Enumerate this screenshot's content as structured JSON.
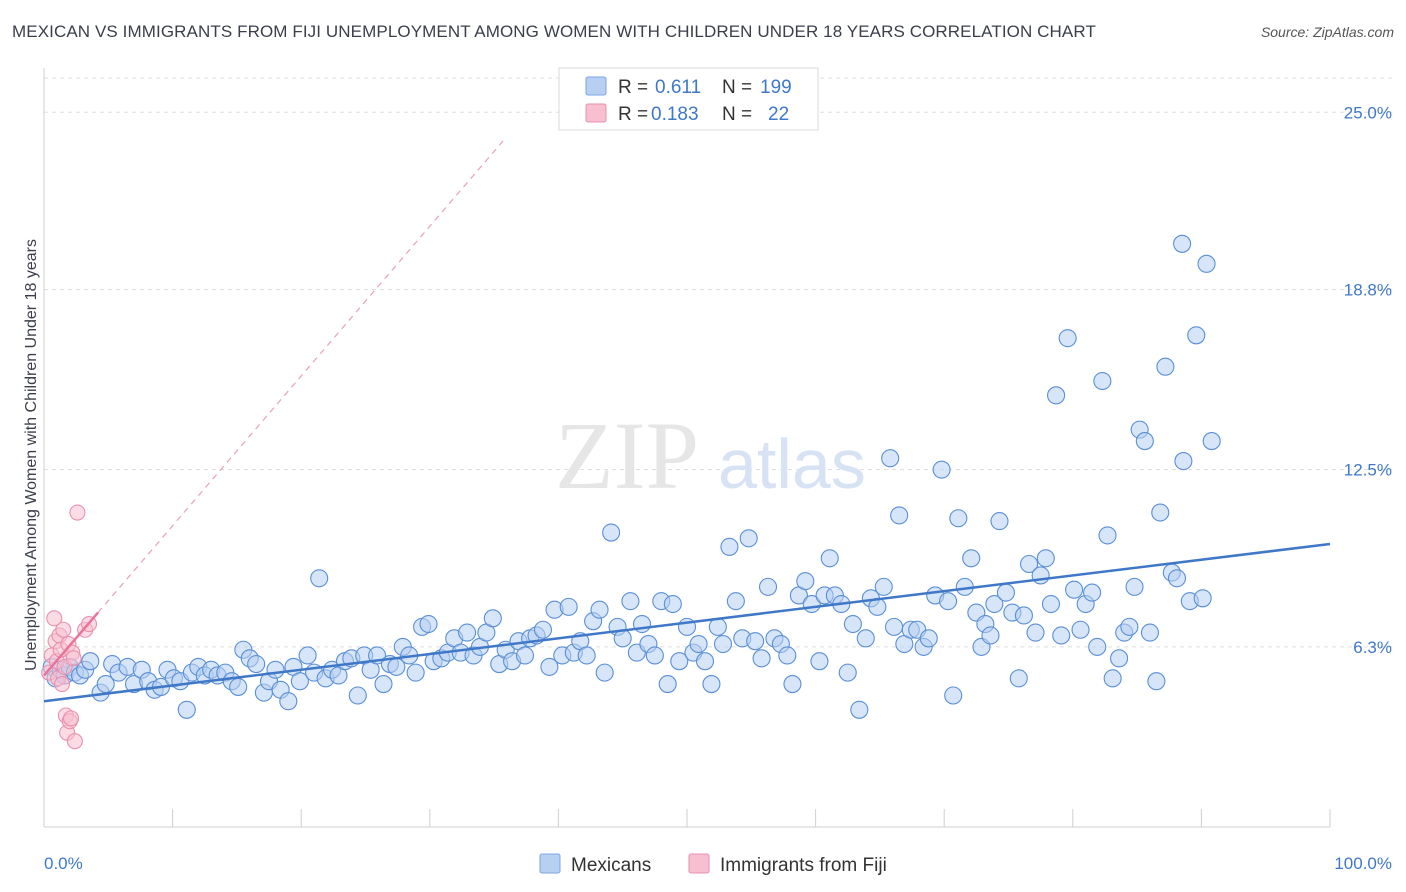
{
  "title": "MEXICAN VS IMMIGRANTS FROM FIJI UNEMPLOYMENT AMONG WOMEN WITH CHILDREN UNDER 18 YEARS CORRELATION CHART",
  "source": "Source: ZipAtlas.com",
  "watermark": {
    "zip": "ZIP",
    "atlas": "atlas"
  },
  "colors": {
    "blue": "#3f78c8",
    "blue_fill": "#b7d0f2",
    "pink": "#e8739b",
    "pink_fill": "#f7bfd0",
    "grid": "#dddddd"
  },
  "legend": {
    "rows": [
      {
        "r_label": "R =",
        "r_value": "0.611",
        "n_label": "N =",
        "n_value": "199"
      },
      {
        "r_label": "R =",
        "r_value": "0.183",
        "n_label": "N =",
        "n_value": "22"
      }
    ]
  },
  "bottom_legend": [
    "Mexicans",
    "Immigrants from Fiji"
  ],
  "chart_data": {
    "type": "scatter",
    "ylabel": "Unemployment Among Women with Children Under 18 years",
    "x_tick_labels": [
      "0.0%",
      "100.0%"
    ],
    "y_tick_labels": [
      "6.3%",
      "12.5%",
      "18.8%",
      "25.0%"
    ],
    "y_ticks": [
      6.3,
      12.5,
      18.8,
      25.0
    ],
    "xlim": [
      0,
      100
    ],
    "ylim": [
      0,
      26.2
    ],
    "grid": true,
    "legend_position": "top-center",
    "series": [
      {
        "name": "Mexicans",
        "color": "#3f78c8",
        "trend": {
          "x": [
            0,
            100
          ],
          "y": [
            4.4,
            9.9
          ]
        },
        "points": [
          [
            0.6,
            5.6
          ],
          [
            0.9,
            5.2
          ],
          [
            1.3,
            5.5
          ],
          [
            1.6,
            5.3
          ],
          [
            2.0,
            5.6
          ],
          [
            2.4,
            5.4
          ],
          [
            2.8,
            5.3
          ],
          [
            3.2,
            5.5
          ],
          [
            3.6,
            5.8
          ],
          [
            4.4,
            4.7
          ],
          [
            4.8,
            5.0
          ],
          [
            5.3,
            5.7
          ],
          [
            5.8,
            5.4
          ],
          [
            6.5,
            5.6
          ],
          [
            7.0,
            5.0
          ],
          [
            7.6,
            5.5
          ],
          [
            8.1,
            5.1
          ],
          [
            8.6,
            4.8
          ],
          [
            9.1,
            4.9
          ],
          [
            9.6,
            5.5
          ],
          [
            10.1,
            5.2
          ],
          [
            10.6,
            5.1
          ],
          [
            11.1,
            4.1
          ],
          [
            11.5,
            5.4
          ],
          [
            12.0,
            5.6
          ],
          [
            12.5,
            5.3
          ],
          [
            13.0,
            5.5
          ],
          [
            13.5,
            5.3
          ],
          [
            14.1,
            5.4
          ],
          [
            14.6,
            5.1
          ],
          [
            15.1,
            4.9
          ],
          [
            15.5,
            6.2
          ],
          [
            16.0,
            5.9
          ],
          [
            16.5,
            5.7
          ],
          [
            17.1,
            4.7
          ],
          [
            17.5,
            5.1
          ],
          [
            18.0,
            5.5
          ],
          [
            18.4,
            4.8
          ],
          [
            19.0,
            4.4
          ],
          [
            19.4,
            5.6
          ],
          [
            19.9,
            5.1
          ],
          [
            20.5,
            6.0
          ],
          [
            21.0,
            5.4
          ],
          [
            21.4,
            8.7
          ],
          [
            21.9,
            5.2
          ],
          [
            22.4,
            5.5
          ],
          [
            22.9,
            5.3
          ],
          [
            23.4,
            5.8
          ],
          [
            23.9,
            5.9
          ],
          [
            24.4,
            4.6
          ],
          [
            24.9,
            6.0
          ],
          [
            25.4,
            5.5
          ],
          [
            25.9,
            6.0
          ],
          [
            26.4,
            5.0
          ],
          [
            26.9,
            5.7
          ],
          [
            27.4,
            5.6
          ],
          [
            27.9,
            6.3
          ],
          [
            28.4,
            6.0
          ],
          [
            28.9,
            5.4
          ],
          [
            29.4,
            7.0
          ],
          [
            29.9,
            7.1
          ],
          [
            30.3,
            5.8
          ],
          [
            30.9,
            5.9
          ],
          [
            31.4,
            6.1
          ],
          [
            31.9,
            6.6
          ],
          [
            32.4,
            6.1
          ],
          [
            32.9,
            6.8
          ],
          [
            33.4,
            6.0
          ],
          [
            33.9,
            6.3
          ],
          [
            34.4,
            6.8
          ],
          [
            34.9,
            7.3
          ],
          [
            35.4,
            5.7
          ],
          [
            35.9,
            6.2
          ],
          [
            36.4,
            5.8
          ],
          [
            36.9,
            6.5
          ],
          [
            37.4,
            6.0
          ],
          [
            37.8,
            6.6
          ],
          [
            38.3,
            6.7
          ],
          [
            38.8,
            6.9
          ],
          [
            39.3,
            5.6
          ],
          [
            39.7,
            7.6
          ],
          [
            40.3,
            6.0
          ],
          [
            40.8,
            7.7
          ],
          [
            41.2,
            6.1
          ],
          [
            41.7,
            6.5
          ],
          [
            42.2,
            6.0
          ],
          [
            42.7,
            7.2
          ],
          [
            43.2,
            7.6
          ],
          [
            43.6,
            5.4
          ],
          [
            44.1,
            10.3
          ],
          [
            44.6,
            7.0
          ],
          [
            45.0,
            6.6
          ],
          [
            45.6,
            7.9
          ],
          [
            46.1,
            6.1
          ],
          [
            46.5,
            7.1
          ],
          [
            47.0,
            6.4
          ],
          [
            47.5,
            6.0
          ],
          [
            48.0,
            7.9
          ],
          [
            48.5,
            5.0
          ],
          [
            48.9,
            7.8
          ],
          [
            49.4,
            5.8
          ],
          [
            50.0,
            7.0
          ],
          [
            50.5,
            6.1
          ],
          [
            50.9,
            6.4
          ],
          [
            51.4,
            5.8
          ],
          [
            51.9,
            5.0
          ],
          [
            52.4,
            7.0
          ],
          [
            52.8,
            6.4
          ],
          [
            53.3,
            9.8
          ],
          [
            53.8,
            7.9
          ],
          [
            54.3,
            6.6
          ],
          [
            54.8,
            10.1
          ],
          [
            55.3,
            6.5
          ],
          [
            55.8,
            5.9
          ],
          [
            56.3,
            8.4
          ],
          [
            56.8,
            6.6
          ],
          [
            57.3,
            6.4
          ],
          [
            57.8,
            6.0
          ],
          [
            58.2,
            5.0
          ],
          [
            58.7,
            8.1
          ],
          [
            59.2,
            8.6
          ],
          [
            59.7,
            7.8
          ],
          [
            60.3,
            5.8
          ],
          [
            60.7,
            8.1
          ],
          [
            61.1,
            9.4
          ],
          [
            61.5,
            8.1
          ],
          [
            62.0,
            7.8
          ],
          [
            62.5,
            5.4
          ],
          [
            62.9,
            7.1
          ],
          [
            63.4,
            4.1
          ],
          [
            63.9,
            6.6
          ],
          [
            64.3,
            8.0
          ],
          [
            64.8,
            7.7
          ],
          [
            65.3,
            8.4
          ],
          [
            65.8,
            12.9
          ],
          [
            66.1,
            7.0
          ],
          [
            66.5,
            10.9
          ],
          [
            66.9,
            6.4
          ],
          [
            67.4,
            6.9
          ],
          [
            67.9,
            6.9
          ],
          [
            68.4,
            6.3
          ],
          [
            68.8,
            6.6
          ],
          [
            69.3,
            8.1
          ],
          [
            69.8,
            12.5
          ],
          [
            70.3,
            7.9
          ],
          [
            70.7,
            4.6
          ],
          [
            71.1,
            10.8
          ],
          [
            71.6,
            8.4
          ],
          [
            72.1,
            9.4
          ],
          [
            72.5,
            7.5
          ],
          [
            72.9,
            6.3
          ],
          [
            73.2,
            7.1
          ],
          [
            73.6,
            6.7
          ],
          [
            73.9,
            7.8
          ],
          [
            74.3,
            10.7
          ],
          [
            74.8,
            8.2
          ],
          [
            75.3,
            7.5
          ],
          [
            75.8,
            5.2
          ],
          [
            76.2,
            7.4
          ],
          [
            76.6,
            9.2
          ],
          [
            77.1,
            6.8
          ],
          [
            77.5,
            8.8
          ],
          [
            77.9,
            9.4
          ],
          [
            78.3,
            7.8
          ],
          [
            78.7,
            15.1
          ],
          [
            79.1,
            6.7
          ],
          [
            79.6,
            17.1
          ],
          [
            80.1,
            8.3
          ],
          [
            80.6,
            6.9
          ],
          [
            81.0,
            7.8
          ],
          [
            81.5,
            8.2
          ],
          [
            81.9,
            6.3
          ],
          [
            82.3,
            15.6
          ],
          [
            82.7,
            10.2
          ],
          [
            83.1,
            5.2
          ],
          [
            83.6,
            5.9
          ],
          [
            84.0,
            6.8
          ],
          [
            84.4,
            7.0
          ],
          [
            84.8,
            8.4
          ],
          [
            85.2,
            13.9
          ],
          [
            85.6,
            13.5
          ],
          [
            86.0,
            6.8
          ],
          [
            86.5,
            5.1
          ],
          [
            86.8,
            11.0
          ],
          [
            87.2,
            16.1
          ],
          [
            87.7,
            8.9
          ],
          [
            88.1,
            8.7
          ],
          [
            88.6,
            12.8
          ],
          [
            89.1,
            7.9
          ],
          [
            89.6,
            17.2
          ],
          [
            90.1,
            8.0
          ],
          [
            90.4,
            19.7
          ],
          [
            90.8,
            13.5
          ],
          [
            88.5,
            20.4
          ]
        ]
      },
      {
        "name": "Immigrants from Fiji",
        "color": "#e8739b",
        "trend": {
          "x": [
            0,
            4.2
          ],
          "y": [
            5.3,
            7.5
          ]
        },
        "points": [
          [
            0.4,
            5.4
          ],
          [
            0.6,
            6.0
          ],
          [
            0.8,
            7.3
          ],
          [
            0.9,
            6.5
          ],
          [
            1.0,
            5.8
          ],
          [
            1.1,
            5.2
          ],
          [
            1.2,
            6.7
          ],
          [
            1.3,
            6.2
          ],
          [
            1.4,
            5.0
          ],
          [
            1.5,
            6.9
          ],
          [
            1.6,
            5.6
          ],
          [
            1.7,
            3.9
          ],
          [
            1.8,
            3.3
          ],
          [
            1.9,
            6.4
          ],
          [
            2.0,
            3.7
          ],
          [
            2.1,
            3.8
          ],
          [
            2.2,
            6.1
          ],
          [
            2.3,
            5.9
          ],
          [
            2.4,
            3.0
          ],
          [
            2.6,
            11.0
          ],
          [
            3.2,
            6.9
          ],
          [
            3.5,
            7.1
          ]
        ]
      }
    ]
  }
}
